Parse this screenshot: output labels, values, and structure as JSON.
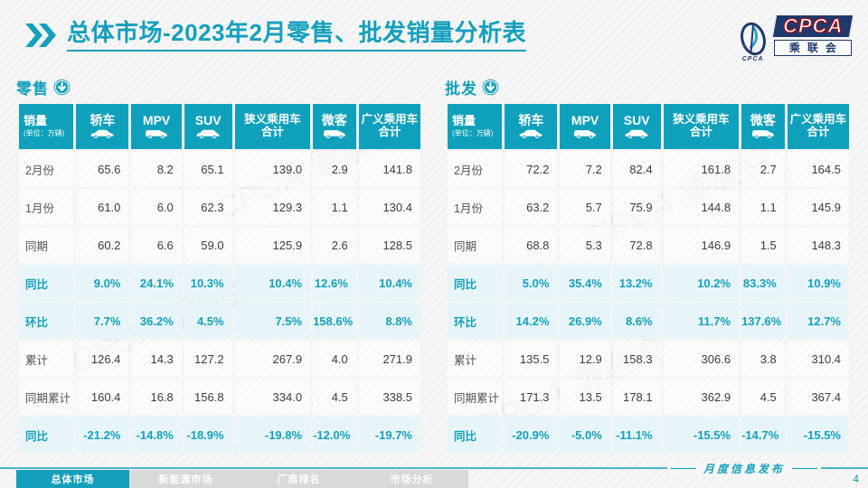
{
  "page": {
    "title_prefix": "总体市场",
    "title_rest": "-2023年2月零售、批发销量分析表",
    "footer_note": "月度信息发布",
    "page_number": "4",
    "nav": [
      {
        "label": "总体市场",
        "active": true
      },
      {
        "label": "新能源市场",
        "active": false
      },
      {
        "label": "厂商排名",
        "active": false
      },
      {
        "label": "市场分析",
        "active": false
      }
    ]
  },
  "logo": {
    "cpca": "CPCA",
    "cn": "乘联会",
    "mark_caption": "CPCA"
  },
  "watermark_text": "CPCA 乘联会",
  "colors": {
    "primary": "#14a0bc",
    "table_header_bg": "#0fa0bc",
    "highlight_row_bg": "#e7f5f9",
    "logo_navy": "#1e3a6d",
    "cpca_red": "#c00000"
  },
  "table_header": {
    "sales_label": "销量",
    "sales_unit": "(单位：万辆)",
    "columns": [
      {
        "label": "轿车",
        "icon": "sedan-icon"
      },
      {
        "label": "MPV",
        "icon": "mpv-icon"
      },
      {
        "label": "SUV",
        "icon": "suv-icon"
      },
      {
        "label": "狭义乘用车合计",
        "icon": null,
        "two_line": [
          "狭义乘用车",
          "合计"
        ]
      },
      {
        "label": "微客",
        "icon": "minibus-icon"
      },
      {
        "label": "广义乘用车合计",
        "icon": null,
        "two_line": [
          "广义乘用车",
          "合计"
        ]
      }
    ]
  },
  "tables": [
    {
      "name": "retail",
      "title": "零售",
      "rows": [
        {
          "label": "2月份",
          "highlight": false,
          "values": [
            "65.6",
            "8.2",
            "65.1",
            "139.0",
            "2.9",
            "141.8"
          ]
        },
        {
          "label": "1月份",
          "highlight": false,
          "values": [
            "61.0",
            "6.0",
            "62.3",
            "129.3",
            "1.1",
            "130.4"
          ]
        },
        {
          "label": "同期",
          "highlight": false,
          "values": [
            "60.2",
            "6.6",
            "59.0",
            "125.9",
            "2.6",
            "128.5"
          ]
        },
        {
          "label": "同比",
          "highlight": true,
          "values": [
            "9.0%",
            "24.1%",
            "10.3%",
            "10.4%",
            "12.6%",
            "10.4%"
          ]
        },
        {
          "label": "环比",
          "highlight": true,
          "values": [
            "7.7%",
            "36.2%",
            "4.5%",
            "7.5%",
            "158.6%",
            "8.8%"
          ]
        },
        {
          "label": "累计",
          "highlight": false,
          "values": [
            "126.4",
            "14.3",
            "127.2",
            "267.9",
            "4.0",
            "271.9"
          ]
        },
        {
          "label": "同期累计",
          "highlight": false,
          "values": [
            "160.4",
            "16.8",
            "156.8",
            "334.0",
            "4.5",
            "338.5"
          ]
        },
        {
          "label": "同比",
          "highlight": true,
          "values": [
            "-21.2%",
            "-14.8%",
            "-18.9%",
            "-19.8%",
            "-12.0%",
            "-19.7%"
          ]
        }
      ]
    },
    {
      "name": "wholesale",
      "title": "批发",
      "rows": [
        {
          "label": "2月份",
          "highlight": false,
          "values": [
            "72.2",
            "7.2",
            "82.4",
            "161.8",
            "2.7",
            "164.5"
          ]
        },
        {
          "label": "1月份",
          "highlight": false,
          "values": [
            "63.2",
            "5.7",
            "75.9",
            "144.8",
            "1.1",
            "145.9"
          ]
        },
        {
          "label": "同期",
          "highlight": false,
          "values": [
            "68.8",
            "5.3",
            "72.8",
            "146.9",
            "1.5",
            "148.3"
          ]
        },
        {
          "label": "同比",
          "highlight": true,
          "values": [
            "5.0%",
            "35.4%",
            "13.2%",
            "10.2%",
            "83.3%",
            "10.9%"
          ]
        },
        {
          "label": "环比",
          "highlight": true,
          "values": [
            "14.2%",
            "26.9%",
            "8.6%",
            "11.7%",
            "137.6%",
            "12.7%"
          ]
        },
        {
          "label": "累计",
          "highlight": false,
          "values": [
            "135.5",
            "12.9",
            "158.3",
            "306.6",
            "3.8",
            "310.4"
          ]
        },
        {
          "label": "同期累计",
          "highlight": false,
          "values": [
            "171.3",
            "13.5",
            "178.1",
            "362.9",
            "4.5",
            "367.4"
          ]
        },
        {
          "label": "同比",
          "highlight": true,
          "values": [
            "-20.9%",
            "-5.0%",
            "-11.1%",
            "-15.5%",
            "-14.7%",
            "-15.5%"
          ]
        }
      ]
    }
  ]
}
